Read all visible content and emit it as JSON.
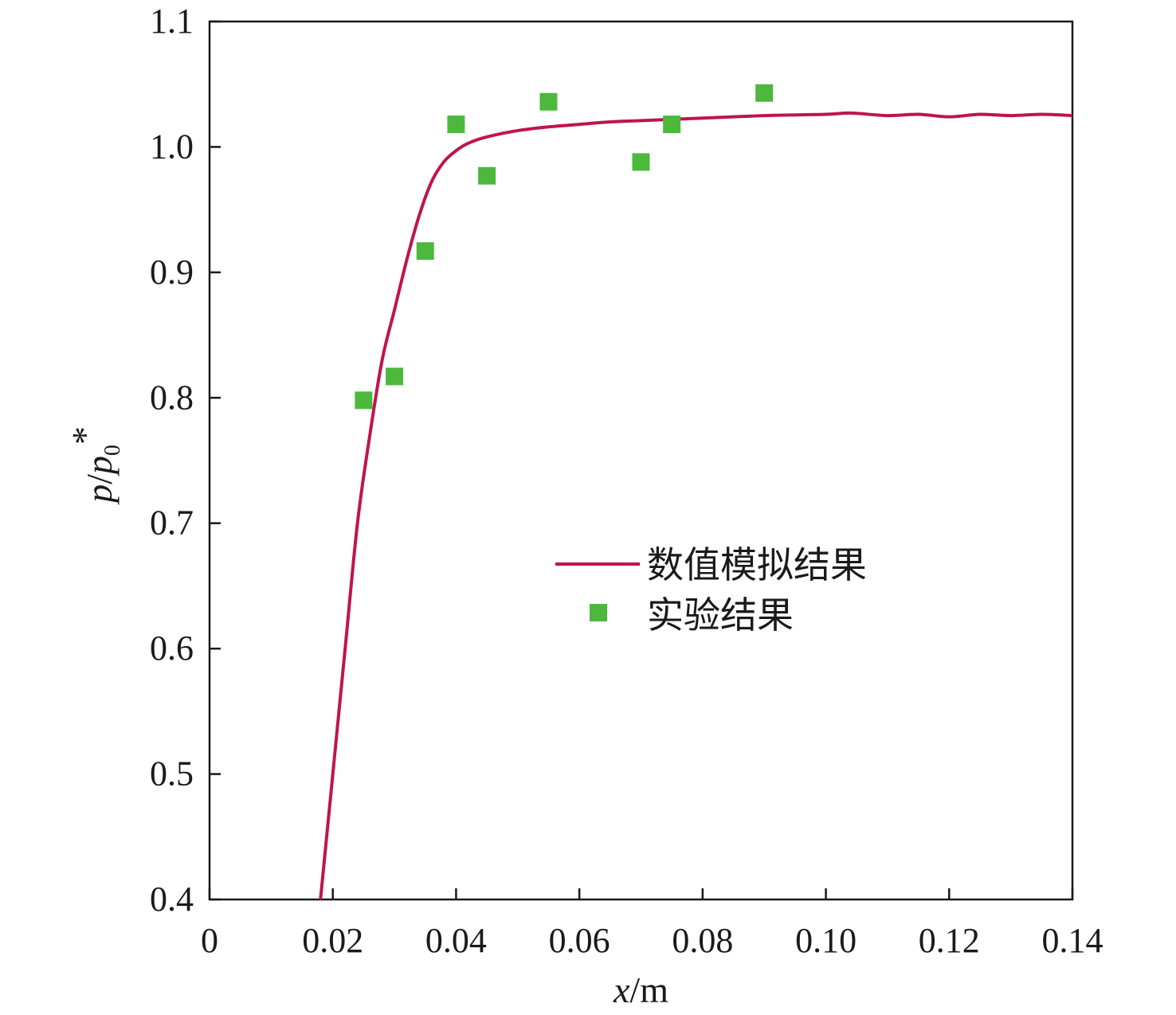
{
  "chart_data": {
    "type": "line",
    "title": "",
    "xlabel": {
      "var": "x",
      "unit": "/m"
    },
    "ylabel": {
      "var": "p",
      "sep": "/",
      "var2": "p",
      "sub": "0",
      "sup": "*"
    },
    "xlim": [
      0,
      0.14
    ],
    "ylim": [
      0.4,
      1.1
    ],
    "x_ticks": [
      0,
      0.02,
      0.04,
      0.06,
      0.08,
      0.1,
      0.12,
      0.14
    ],
    "x_tick_labels": [
      "0",
      "0.02",
      "0.04",
      "0.06",
      "0.08",
      "0.10",
      "0.12",
      "0.14"
    ],
    "y_ticks": [
      0.4,
      0.5,
      0.6,
      0.7,
      0.8,
      0.9,
      1.0,
      1.1
    ],
    "y_tick_labels": [
      "0.4",
      "0.5",
      "0.6",
      "0.7",
      "0.8",
      "0.9",
      "1.0",
      "1.1"
    ],
    "grid": false,
    "legend_position": "center-right",
    "series": [
      {
        "name": "数值模拟结果",
        "type": "line",
        "color": "#c0144c",
        "x": [
          0.018,
          0.02,
          0.022,
          0.024,
          0.026,
          0.028,
          0.03,
          0.032,
          0.034,
          0.036,
          0.038,
          0.04,
          0.042,
          0.045,
          0.05,
          0.055,
          0.06,
          0.065,
          0.07,
          0.075,
          0.08,
          0.09,
          0.1,
          0.104,
          0.11,
          0.115,
          0.12,
          0.125,
          0.13,
          0.135,
          0.14
        ],
        "y": [
          0.4,
          0.5,
          0.6,
          0.7,
          0.77,
          0.83,
          0.87,
          0.91,
          0.945,
          0.972,
          0.988,
          0.997,
          1.003,
          1.008,
          1.013,
          1.016,
          1.018,
          1.02,
          1.021,
          1.022,
          1.023,
          1.025,
          1.026,
          1.027,
          1.025,
          1.026,
          1.024,
          1.026,
          1.025,
          1.026,
          1.025
        ]
      },
      {
        "name": "实验结果",
        "type": "scatter",
        "color": "#4cb83c",
        "x": [
          0.025,
          0.03,
          0.035,
          0.04,
          0.045,
          0.055,
          0.07,
          0.075,
          0.09
        ],
        "y": [
          0.798,
          0.817,
          0.917,
          1.018,
          0.977,
          1.036,
          0.988,
          1.018,
          1.043
        ]
      }
    ]
  }
}
